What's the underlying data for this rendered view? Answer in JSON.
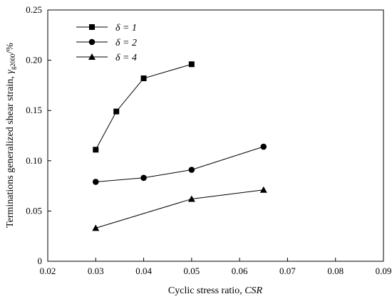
{
  "chart_data": {
    "type": "line",
    "title": "",
    "xlabel": {
      "plain": "Cyclic stress ratio, ",
      "italic": "CSR"
    },
    "ylabel": {
      "plain": "Terminations generalized shear strain, ",
      "symbol": "γ",
      "subscript": "g2000",
      "unit": "/%"
    },
    "xlim": [
      0.02,
      0.09
    ],
    "ylim": [
      0,
      0.25
    ],
    "xticks": [
      "0.02",
      "0.03",
      "0.04",
      "0.05",
      "0.06",
      "0.07",
      "0.08",
      "0.09"
    ],
    "yticks": [
      "0",
      "0.05",
      "0.10",
      "0.15",
      "0.20",
      "0.25"
    ],
    "grid": false,
    "legend_position": "top-left",
    "series": [
      {
        "name": "δ = 1",
        "marker": "square",
        "x": [
          0.03,
          0.0343,
          0.04,
          0.05
        ],
        "y": [
          0.111,
          0.149,
          0.182,
          0.196
        ]
      },
      {
        "name": "δ = 2",
        "marker": "circle",
        "x": [
          0.03,
          0.04,
          0.05,
          0.065
        ],
        "y": [
          0.079,
          0.083,
          0.091,
          0.114
        ]
      },
      {
        "name": "δ = 4",
        "marker": "triangle",
        "x": [
          0.03,
          0.05,
          0.065
        ],
        "y": [
          0.033,
          0.062,
          0.071
        ]
      }
    ]
  }
}
